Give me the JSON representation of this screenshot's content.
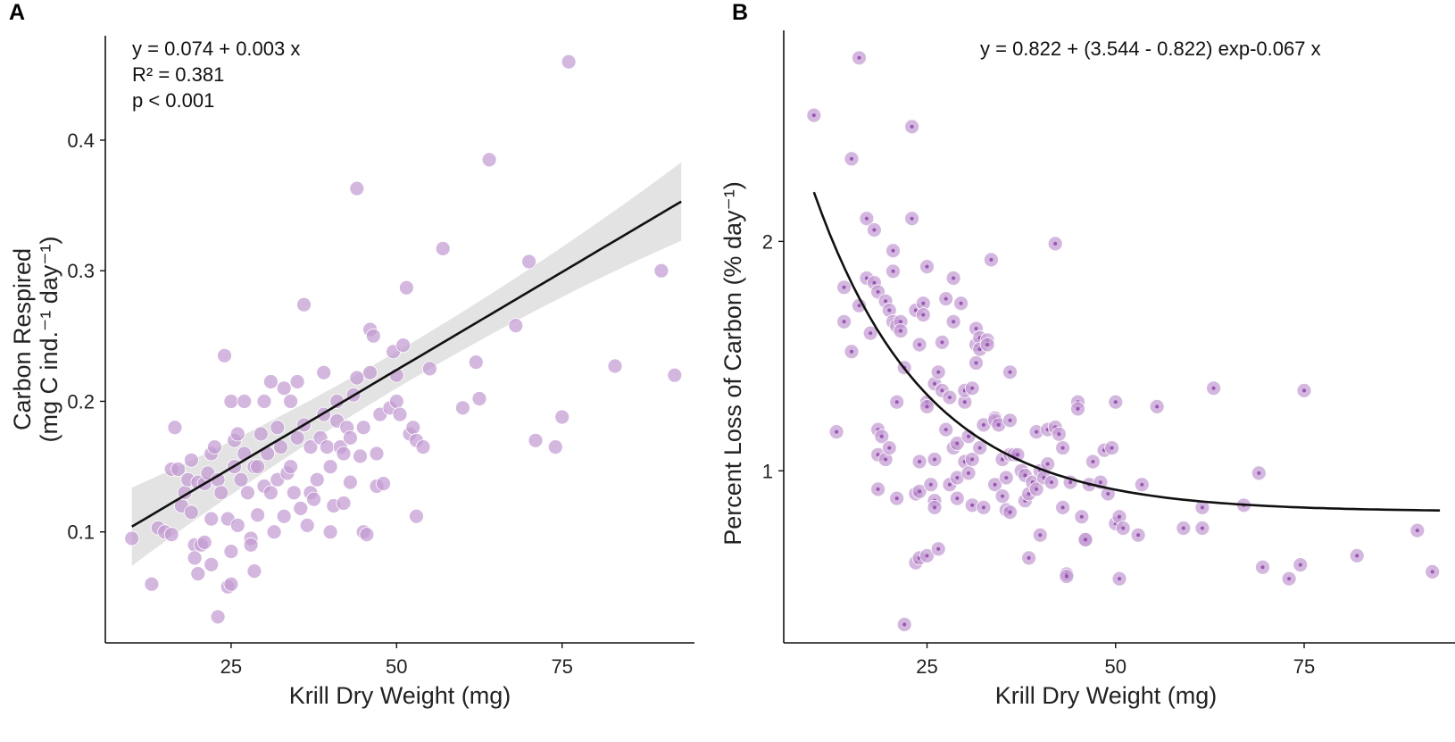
{
  "chart_data": [
    {
      "panel": "A",
      "type": "scatter",
      "xlabel": "Krill Dry Weight (mg)",
      "ylabel_line1": "Carbon Respired",
      "ylabel_line2": "(mg C ind.⁻¹ day⁻¹)",
      "xlim": [
        6,
        95
      ],
      "ylim": [
        0.015,
        0.48
      ],
      "xticks": [
        25,
        50,
        75
      ],
      "yticks": [
        0.1,
        0.2,
        0.3,
        0.4
      ],
      "annotation": [
        "y = 0.074 + 0.003 x",
        "R² = 0.381",
        "p < 0.001"
      ],
      "point_color": "#c39bd3",
      "fit": {
        "intercept": 0.074,
        "slope": 0.003,
        "x_range": [
          10,
          93
        ],
        "se_low": 0.014,
        "se_high": 0.03
      },
      "points": [
        [
          10,
          0.095
        ],
        [
          13,
          0.06
        ],
        [
          14,
          0.103
        ],
        [
          15,
          0.1
        ],
        [
          16,
          0.148
        ],
        [
          16,
          0.098
        ],
        [
          16.5,
          0.18
        ],
        [
          17,
          0.148
        ],
        [
          17.5,
          0.12
        ],
        [
          18,
          0.13
        ],
        [
          18.5,
          0.14
        ],
        [
          19,
          0.115
        ],
        [
          19,
          0.155
        ],
        [
          19.5,
          0.09
        ],
        [
          19.5,
          0.08
        ],
        [
          20,
          0.068
        ],
        [
          20,
          0.138
        ],
        [
          20.5,
          0.09
        ],
        [
          21,
          0.137
        ],
        [
          21,
          0.092
        ],
        [
          21.5,
          0.145
        ],
        [
          22,
          0.16
        ],
        [
          22,
          0.11
        ],
        [
          22,
          0.075
        ],
        [
          22.5,
          0.165
        ],
        [
          23,
          0.14
        ],
        [
          23,
          0.035
        ],
        [
          23.5,
          0.13
        ],
        [
          24,
          0.235
        ],
        [
          24.5,
          0.058
        ],
        [
          24.5,
          0.11
        ],
        [
          25,
          0.2
        ],
        [
          25,
          0.085
        ],
        [
          25,
          0.06
        ],
        [
          25.5,
          0.15
        ],
        [
          25.5,
          0.17
        ],
        [
          26,
          0.105
        ],
        [
          26,
          0.175
        ],
        [
          26.5,
          0.14
        ],
        [
          27,
          0.16
        ],
        [
          27,
          0.2
        ],
        [
          27.5,
          0.13
        ],
        [
          28,
          0.095
        ],
        [
          28,
          0.09
        ],
        [
          28.5,
          0.15
        ],
        [
          28.5,
          0.07
        ],
        [
          29,
          0.113
        ],
        [
          29,
          0.15
        ],
        [
          29.5,
          0.175
        ],
        [
          30,
          0.135
        ],
        [
          30,
          0.2
        ],
        [
          30.5,
          0.16
        ],
        [
          31,
          0.215
        ],
        [
          31,
          0.13
        ],
        [
          31.5,
          0.1
        ],
        [
          32,
          0.18
        ],
        [
          32,
          0.14
        ],
        [
          32.5,
          0.165
        ],
        [
          33,
          0.112
        ],
        [
          33,
          0.21
        ],
        [
          33.5,
          0.145
        ],
        [
          34,
          0.2
        ],
        [
          34,
          0.15
        ],
        [
          34.5,
          0.13
        ],
        [
          35,
          0.215
        ],
        [
          35,
          0.172
        ],
        [
          35.5,
          0.118
        ],
        [
          36,
          0.182
        ],
        [
          36,
          0.274
        ],
        [
          36.5,
          0.105
        ],
        [
          37,
          0.13
        ],
        [
          37,
          0.165
        ],
        [
          37.5,
          0.125
        ],
        [
          38,
          0.14
        ],
        [
          38.5,
          0.172
        ],
        [
          39,
          0.19
        ],
        [
          39,
          0.222
        ],
        [
          39.5,
          0.165
        ],
        [
          40,
          0.15
        ],
        [
          40,
          0.1
        ],
        [
          40.5,
          0.12
        ],
        [
          41,
          0.185
        ],
        [
          41,
          0.2
        ],
        [
          41.5,
          0.165
        ],
        [
          42,
          0.16
        ],
        [
          42,
          0.122
        ],
        [
          42.5,
          0.18
        ],
        [
          43,
          0.138
        ],
        [
          43,
          0.172
        ],
        [
          43.5,
          0.205
        ],
        [
          44,
          0.363
        ],
        [
          44,
          0.218
        ],
        [
          44.5,
          0.158
        ],
        [
          45,
          0.18
        ],
        [
          45,
          0.1
        ],
        [
          45.5,
          0.098
        ],
        [
          46,
          0.222
        ],
        [
          46,
          0.255
        ],
        [
          46.5,
          0.25
        ],
        [
          47,
          0.16
        ],
        [
          47,
          0.135
        ],
        [
          47.5,
          0.19
        ],
        [
          48,
          0.137
        ],
        [
          49,
          0.195
        ],
        [
          49.5,
          0.238
        ],
        [
          50,
          0.22
        ],
        [
          50,
          0.2
        ],
        [
          50.5,
          0.19
        ],
        [
          51,
          0.243
        ],
        [
          51.5,
          0.287
        ],
        [
          52,
          0.175
        ],
        [
          52.5,
          0.18
        ],
        [
          53,
          0.112
        ],
        [
          53,
          0.17
        ],
        [
          54,
          0.165
        ],
        [
          55,
          0.225
        ],
        [
          57,
          0.317
        ],
        [
          60,
          0.195
        ],
        [
          62,
          0.23
        ],
        [
          62.5,
          0.202
        ],
        [
          64,
          0.385
        ],
        [
          68,
          0.258
        ],
        [
          70,
          0.307
        ],
        [
          71,
          0.17
        ],
        [
          74,
          0.165
        ],
        [
          75,
          0.188
        ],
        [
          76,
          0.46
        ],
        [
          83,
          0.227
        ],
        [
          90,
          0.3
        ],
        [
          92,
          0.22
        ]
      ]
    },
    {
      "panel": "B",
      "type": "scatter",
      "xlabel": "Krill Dry Weight (mg)",
      "ylabel_line1": "Percent Loss of Carbon (% day⁻¹)",
      "ylabel_line2": "",
      "xlim": [
        6,
        95
      ],
      "ylim": [
        0.25,
        2.92
      ],
      "xticks": [
        25,
        50,
        75
      ],
      "yticks": [
        1,
        2
      ],
      "annotation": [
        "y = 0.822 + (3.544 - 0.822) exp-0.067 x"
      ],
      "point_color": "#c39bd3",
      "fit": {
        "a": 0.822,
        "b": 3.544,
        "k": 0.067,
        "x_range": [
          10,
          93
        ]
      },
      "points": [
        [
          10,
          2.55
        ],
        [
          13,
          1.17
        ],
        [
          14,
          1.8
        ],
        [
          14,
          1.65
        ],
        [
          15,
          1.52
        ],
        [
          15,
          2.36
        ],
        [
          16,
          2.8
        ],
        [
          16,
          1.72
        ],
        [
          17,
          2.1
        ],
        [
          17,
          1.84
        ],
        [
          17.5,
          1.6
        ],
        [
          18,
          1.82
        ],
        [
          18,
          2.05
        ],
        [
          18.5,
          1.78
        ],
        [
          18.5,
          1.18
        ],
        [
          18.5,
          1.07
        ],
        [
          18.5,
          0.92
        ],
        [
          19,
          1.15
        ],
        [
          19.5,
          1.74
        ],
        [
          19.5,
          1.05
        ],
        [
          20,
          1.7
        ],
        [
          20,
          1.1
        ],
        [
          20.5,
          1.96
        ],
        [
          20.5,
          1.87
        ],
        [
          20.5,
          1.65
        ],
        [
          21,
          0.88
        ],
        [
          21,
          1.63
        ],
        [
          21,
          1.3
        ],
        [
          21.5,
          1.65
        ],
        [
          21.5,
          1.61
        ],
        [
          22,
          1.45
        ],
        [
          22,
          0.33
        ],
        [
          23,
          2.5
        ],
        [
          23,
          2.1
        ],
        [
          23.5,
          0.9
        ],
        [
          23.5,
          0.6
        ],
        [
          23.5,
          1.7
        ],
        [
          24,
          1.55
        ],
        [
          24,
          1.04
        ],
        [
          24,
          0.91
        ],
        [
          24,
          0.62
        ],
        [
          24.5,
          1.73
        ],
        [
          24.5,
          1.68
        ],
        [
          25,
          1.3
        ],
        [
          25,
          1.89
        ],
        [
          25,
          1.28
        ],
        [
          25,
          0.63
        ],
        [
          25.5,
          0.94
        ],
        [
          26,
          1.38
        ],
        [
          26,
          0.87
        ],
        [
          26,
          1.05
        ],
        [
          26,
          0.84
        ],
        [
          26.5,
          1.43
        ],
        [
          26.5,
          0.66
        ],
        [
          27,
          1.56
        ],
        [
          27,
          1.35
        ],
        [
          27.5,
          1.75
        ],
        [
          27.5,
          1.18
        ],
        [
          28,
          1.32
        ],
        [
          28,
          0.94
        ],
        [
          28.5,
          1.84
        ],
        [
          28.5,
          1.65
        ],
        [
          28.5,
          1.1
        ],
        [
          29,
          0.88
        ],
        [
          29,
          0.97
        ],
        [
          29,
          1.12
        ],
        [
          29.5,
          1.73
        ],
        [
          30,
          1.3
        ],
        [
          30,
          1.04
        ],
        [
          30,
          1.35
        ],
        [
          30.5,
          1.15
        ],
        [
          30.5,
          0.99
        ],
        [
          31,
          1.05
        ],
        [
          31,
          1.36
        ],
        [
          31,
          0.85
        ],
        [
          31.5,
          1.62
        ],
        [
          31.5,
          1.55
        ],
        [
          31.5,
          1.47
        ],
        [
          32,
          1.58
        ],
        [
          32,
          1.53
        ],
        [
          32,
          1.1
        ],
        [
          32.5,
          0.84
        ],
        [
          32.5,
          1.2
        ],
        [
          33,
          1.57
        ],
        [
          33,
          1.55
        ],
        [
          33.5,
          1.92
        ],
        [
          34,
          1.23
        ],
        [
          34,
          1.22
        ],
        [
          34,
          0.94
        ],
        [
          34.5,
          1.2
        ],
        [
          35,
          1.05
        ],
        [
          35,
          0.89
        ],
        [
          35.5,
          0.97
        ],
        [
          35.5,
          0.83
        ],
        [
          36,
          1.43
        ],
        [
          36,
          1.22
        ],
        [
          36,
          1.07
        ],
        [
          36,
          0.82
        ],
        [
          36.5,
          1.07
        ],
        [
          37,
          1.07
        ],
        [
          37.5,
          1.0
        ],
        [
          38,
          0.87
        ],
        [
          38,
          0.98
        ],
        [
          38.5,
          0.9
        ],
        [
          38.5,
          0.62
        ],
        [
          39,
          0.95
        ],
        [
          39.5,
          1.17
        ],
        [
          39.5,
          0.92
        ],
        [
          40,
          1.0
        ],
        [
          40,
          0.72
        ],
        [
          40.5,
          0.97
        ],
        [
          41,
          1.03
        ],
        [
          41,
          1.18
        ],
        [
          41.5,
          0.95
        ],
        [
          42,
          1.99
        ],
        [
          42,
          1.19
        ],
        [
          42.5,
          1.16
        ],
        [
          43,
          1.1
        ],
        [
          43,
          0.84
        ],
        [
          43.5,
          0.55
        ],
        [
          43.5,
          0.54
        ],
        [
          44,
          0.95
        ],
        [
          45,
          1.3
        ],
        [
          45,
          1.27
        ],
        [
          45.5,
          0.8
        ],
        [
          46,
          0.7
        ],
        [
          46,
          0.7
        ],
        [
          46.5,
          0.94
        ],
        [
          47,
          1.04
        ],
        [
          48,
          0.95
        ],
        [
          48.5,
          1.09
        ],
        [
          49,
          0.9
        ],
        [
          49.5,
          1.1
        ],
        [
          50,
          1.3
        ],
        [
          50,
          0.77
        ],
        [
          50.5,
          0.8
        ],
        [
          50.5,
          0.53
        ],
        [
          51,
          0.75
        ],
        [
          53,
          0.72
        ],
        [
          53.5,
          0.94
        ],
        [
          55.5,
          1.28
        ],
        [
          59,
          0.75
        ],
        [
          61.5,
          0.84
        ],
        [
          61.5,
          0.75
        ],
        [
          63,
          1.36
        ],
        [
          67,
          0.85
        ],
        [
          69,
          0.99
        ],
        [
          69.5,
          0.58
        ],
        [
          73,
          0.53
        ],
        [
          74.5,
          0.59
        ],
        [
          75,
          1.35
        ],
        [
          82,
          0.63
        ],
        [
          90,
          0.74
        ],
        [
          92,
          0.56
        ]
      ]
    }
  ]
}
